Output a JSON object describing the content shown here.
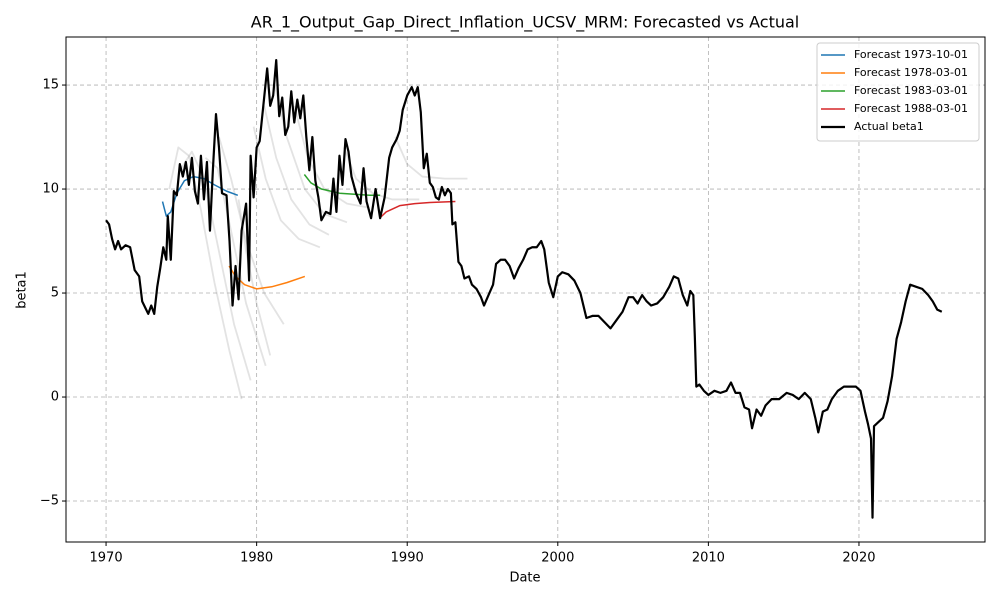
{
  "chart_data": {
    "type": "line",
    "title": "AR_1_Output_Gap_Direct_Inflation_UCSV_MRM: Forecasted vs Actual",
    "x_label": "Date",
    "y_label": "beta1",
    "xlim": [
      1967.34,
      2028.37
    ],
    "ylim": [
      -6.97,
      17.31
    ],
    "xticks": [
      1970,
      1980,
      1990,
      2000,
      2010,
      2020
    ],
    "yticks": [
      {
        "value": -5,
        "label": "−5"
      },
      0,
      5,
      10,
      15
    ],
    "grid": true,
    "legend": "upper right",
    "series": [
      {
        "color": "#808080",
        "x": [
          1974.2,
          1974.8,
          1975.5,
          1976.3,
          1977.2,
          1978.2,
          1979.0
        ],
        "values": [
          10.0,
          12.0,
          11.6,
          9.0,
          5.5,
          2.2,
          -0.1
        ]
      },
      {
        "color": "#808080",
        "x": [
          1975.0,
          1975.7,
          1976.5,
          1977.5,
          1978.5,
          1979.6
        ],
        "values": [
          11.0,
          11.8,
          10.5,
          7.0,
          3.5,
          0.8
        ]
      },
      {
        "color": "#808080",
        "x": [
          1976.6,
          1977.4,
          1978.3,
          1979.3,
          1980.6
        ],
        "values": [
          11.5,
          11.0,
          8.0,
          4.5,
          1.5
        ]
      },
      {
        "color": "#808080",
        "x": [
          1977.5,
          1978.3,
          1979.3,
          1980.5,
          1981.8
        ],
        "values": [
          12.5,
          10.5,
          7.5,
          5.0,
          3.5
        ]
      },
      {
        "color": "#808080",
        "x": [
          1978.8,
          1979.3,
          1980.0,
          1980.9
        ],
        "values": [
          9.5,
          7.0,
          4.5,
          2.0
        ]
      },
      {
        "color": "#808080",
        "x": [
          1979.8,
          1980.6,
          1981.6,
          1982.8,
          1984.2
        ],
        "values": [
          13.0,
          10.5,
          8.5,
          7.6,
          7.2
        ]
      },
      {
        "color": "#808080",
        "x": [
          1980.5,
          1981.3,
          1982.3,
          1983.5,
          1984.8
        ],
        "values": [
          14.0,
          11.5,
          9.5,
          8.3,
          7.8
        ]
      },
      {
        "color": "#808080",
        "x": [
          1981.2,
          1982.0,
          1983.2,
          1984.5,
          1986.0
        ],
        "values": [
          15.0,
          12.5,
          10.0,
          8.8,
          8.4
        ]
      },
      {
        "color": "#808080",
        "x": [
          1982.5,
          1983.4,
          1984.5,
          1986.0,
          1987.5
        ],
        "values": [
          14.0,
          11.5,
          10.0,
          9.3,
          9.1
        ]
      },
      {
        "color": "#808080",
        "x": [
          1985.8,
          1986.6,
          1987.7,
          1989.0,
          1990.8
        ],
        "values": [
          12.0,
          10.5,
          9.8,
          9.5,
          9.5
        ]
      },
      {
        "color": "#808080",
        "x": [
          1989.2,
          1990.0,
          1991.0,
          1992.5,
          1994.0
        ],
        "values": [
          12.5,
          11.2,
          10.6,
          10.5,
          10.5
        ]
      },
      {
        "name": "Forecast 1973-10-01",
        "color": "#1f77b4",
        "x": [
          1973.75,
          1974.0,
          1974.3,
          1974.7,
          1975.2,
          1975.8,
          1976.5,
          1977.2,
          1978.0,
          1978.75
        ],
        "values": [
          9.4,
          8.7,
          8.9,
          9.8,
          10.4,
          10.6,
          10.5,
          10.2,
          9.9,
          9.7
        ]
      },
      {
        "name": "Forecast 1978-03-01",
        "color": "#ff7f0e",
        "x": [
          1978.17,
          1978.6,
          1979.2,
          1980.0,
          1981.0,
          1982.0,
          1983.2
        ],
        "values": [
          6.3,
          5.8,
          5.4,
          5.2,
          5.3,
          5.5,
          5.8
        ]
      },
      {
        "name": "Forecast 1983-03-01",
        "color": "#2ca02c",
        "x": [
          1983.17,
          1983.6,
          1984.3,
          1985.5,
          1986.5,
          1987.5,
          1988.2
        ],
        "values": [
          10.7,
          10.3,
          10.0,
          9.8,
          9.75,
          9.7,
          9.7
        ]
      },
      {
        "name": "Forecast 1988-03-01",
        "color": "#d62728",
        "x": [
          1988.17,
          1988.6,
          1989.5,
          1990.5,
          1991.5,
          1993.2
        ],
        "values": [
          8.6,
          8.9,
          9.2,
          9.3,
          9.35,
          9.4
        ]
      },
      {
        "name": "Actual beta1",
        "color": "#000000",
        "x": [
          1970.0,
          1970.2,
          1970.4,
          1970.6,
          1970.8,
          1971.0,
          1971.3,
          1971.6,
          1971.9,
          1972.2,
          1972.4,
          1972.6,
          1972.8,
          1973.0,
          1973.2,
          1973.4,
          1973.6,
          1973.8,
          1974.0,
          1974.1,
          1974.3,
          1974.5,
          1974.7,
          1974.9,
          1975.1,
          1975.3,
          1975.5,
          1975.7,
          1975.9,
          1976.1,
          1976.3,
          1976.5,
          1976.7,
          1976.9,
          1977.1,
          1977.3,
          1977.5,
          1977.7,
          1978.0,
          1978.2,
          1978.4,
          1978.6,
          1978.8,
          1979.0,
          1979.3,
          1979.5,
          1979.6,
          1979.8,
          1980.0,
          1980.2,
          1980.5,
          1980.7,
          1980.9,
          1981.1,
          1981.3,
          1981.5,
          1981.7,
          1981.9,
          1982.1,
          1982.3,
          1982.5,
          1982.7,
          1982.9,
          1983.1,
          1983.3,
          1983.5,
          1983.7,
          1983.9,
          1984.1,
          1984.3,
          1984.6,
          1984.9,
          1985.1,
          1985.3,
          1985.5,
          1985.7,
          1985.9,
          1986.1,
          1986.3,
          1986.6,
          1986.9,
          1987.1,
          1987.3,
          1987.6,
          1987.9,
          1988.2,
          1988.5,
          1988.8,
          1989.0,
          1989.3,
          1989.5,
          1989.7,
          1990.0,
          1990.3,
          1990.5,
          1990.7,
          1990.9,
          1991.1,
          1991.3,
          1991.5,
          1991.7,
          1991.9,
          1992.1,
          1992.3,
          1992.5,
          1992.7,
          1992.9,
          1993.0,
          1993.2,
          1993.4,
          1993.6,
          1993.8,
          1994.1,
          1994.3,
          1994.6,
          1994.9,
          1995.1,
          1995.4,
          1995.7,
          1995.9,
          1996.2,
          1996.5,
          1996.8,
          1997.1,
          1997.4,
          1997.7,
          1998.0,
          1998.3,
          1998.6,
          1998.9,
          1999.1,
          1999.4,
          1999.7,
          2000.0,
          2000.3,
          2000.7,
          2001.1,
          2001.5,
          2001.9,
          2002.3,
          2002.7,
          2003.1,
          2003.5,
          2003.9,
          2004.3,
          2004.7,
          2005.0,
          2005.3,
          2005.6,
          2005.9,
          2006.2,
          2006.6,
          2007.0,
          2007.4,
          2007.7,
          2008.0,
          2008.3,
          2008.6,
          2008.8,
          2009.0,
          2009.1,
          2009.2,
          2009.4,
          2009.7,
          2010.0,
          2010.4,
          2010.8,
          2011.2,
          2011.5,
          2011.8,
          2012.1,
          2012.4,
          2012.7,
          2012.9,
          2013.2,
          2013.5,
          2013.8,
          2014.2,
          2014.7,
          2015.2,
          2015.6,
          2016.0,
          2016.4,
          2016.8,
          2017.1,
          2017.3,
          2017.6,
          2017.9,
          2018.2,
          2018.6,
          2019.0,
          2019.4,
          2019.8,
          2020.1,
          2020.4,
          2020.6,
          2020.8,
          2020.9,
          2021.0,
          2021.3,
          2021.6,
          2021.9,
          2022.2,
          2022.5,
          2022.8,
          2023.1,
          2023.4,
          2023.8,
          2024.2,
          2024.6,
          2024.9,
          2025.2,
          2025.5
        ],
        "values": [
          8.5,
          8.3,
          7.6,
          7.1,
          7.5,
          7.1,
          7.3,
          7.2,
          6.1,
          5.8,
          4.6,
          4.3,
          4.0,
          4.4,
          4.0,
          5.3,
          6.2,
          7.2,
          6.6,
          8.7,
          6.6,
          9.9,
          9.7,
          11.2,
          10.6,
          11.3,
          10.2,
          11.5,
          9.9,
          9.3,
          11.6,
          9.5,
          11.3,
          8.0,
          11.0,
          13.6,
          12.0,
          9.8,
          9.7,
          7.5,
          4.4,
          6.3,
          4.7,
          8.0,
          9.3,
          5.6,
          11.6,
          9.6,
          12.0,
          12.3,
          14.4,
          15.8,
          14.0,
          14.5,
          16.2,
          13.5,
          14.4,
          12.6,
          13.0,
          14.7,
          13.2,
          14.3,
          13.4,
          14.5,
          12.5,
          10.9,
          12.5,
          10.4,
          9.6,
          8.5,
          8.9,
          8.8,
          10.5,
          8.9,
          11.6,
          10.2,
          12.4,
          11.8,
          10.6,
          9.8,
          9.3,
          11.0,
          9.4,
          8.6,
          10.0,
          8.6,
          9.6,
          11.5,
          12.0,
          12.4,
          12.8,
          13.8,
          14.5,
          14.9,
          14.5,
          14.9,
          13.7,
          11.0,
          11.7,
          10.3,
          10.1,
          9.6,
          9.5,
          10.1,
          9.7,
          10.0,
          9.8,
          8.3,
          8.4,
          6.5,
          6.3,
          5.7,
          5.8,
          5.4,
          5.2,
          4.8,
          4.4,
          4.9,
          5.4,
          6.4,
          6.6,
          6.6,
          6.3,
          5.7,
          6.2,
          6.6,
          7.1,
          7.2,
          7.2,
          7.5,
          7.1,
          5.5,
          4.8,
          5.8,
          6.0,
          5.9,
          5.6,
          5.0,
          3.8,
          3.9,
          3.9,
          3.6,
          3.3,
          3.7,
          4.1,
          4.8,
          4.8,
          4.5,
          4.9,
          4.6,
          4.4,
          4.5,
          4.8,
          5.3,
          5.8,
          5.7,
          4.9,
          4.4,
          5.1,
          4.9,
          2.9,
          0.5,
          0.6,
          0.3,
          0.1,
          0.3,
          0.2,
          0.3,
          0.7,
          0.2,
          0.2,
          -0.5,
          -0.6,
          -1.5,
          -0.6,
          -0.9,
          -0.4,
          -0.1,
          -0.1,
          0.2,
          0.1,
          -0.1,
          0.2,
          -0.1,
          -1.0,
          -1.7,
          -0.7,
          -0.6,
          -0.1,
          0.3,
          0.5,
          0.5,
          0.5,
          0.3,
          -0.7,
          -1.3,
          -2.0,
          -5.8,
          -1.4,
          -1.2,
          -1.0,
          -0.2,
          1.0,
          2.8,
          3.6,
          4.6,
          5.4,
          5.3,
          5.2,
          4.9,
          4.6,
          4.2,
          4.1
        ]
      }
    ]
  }
}
